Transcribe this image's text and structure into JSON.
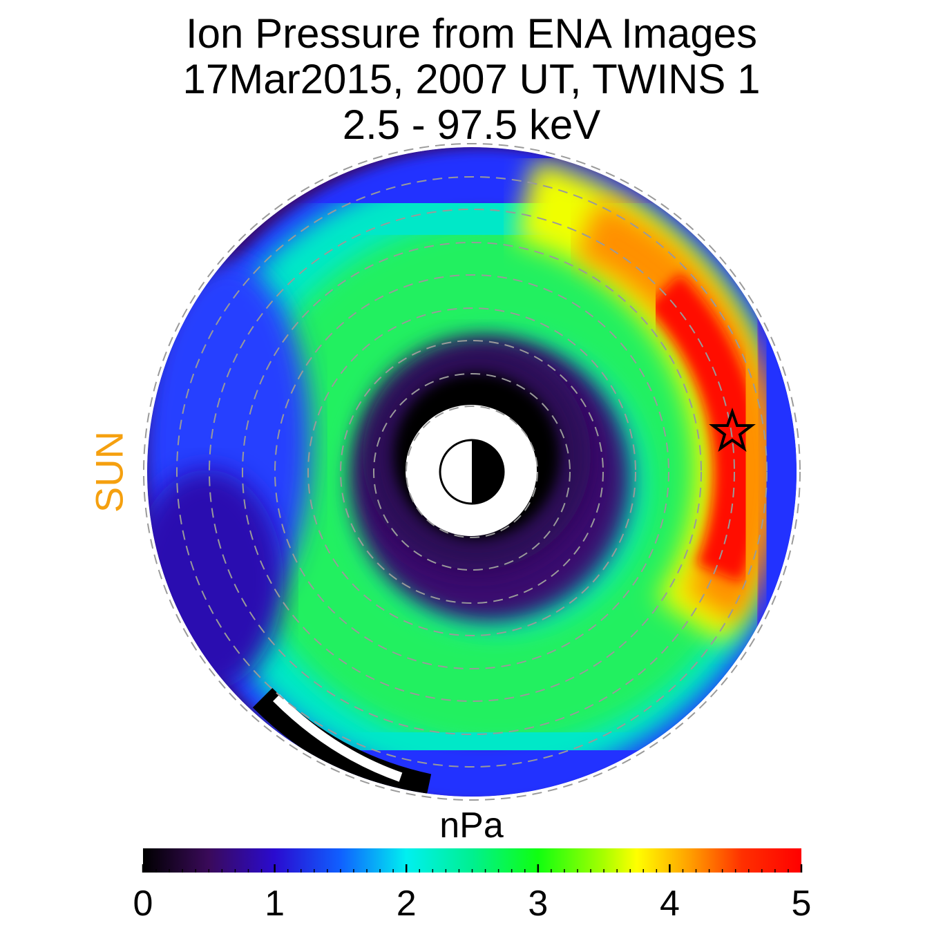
{
  "chart_data": {
    "type": "heatmap",
    "projection": "polar equatorial plane",
    "title_lines": [
      "Ion Pressure from  ENA Images",
      "17Mar2015, 2007 UT,  TWINS 1",
      "2.5 - 97.5 keV"
    ],
    "sun_label": "SUN",
    "colorbar": {
      "label": "nPa",
      "range": [
        0,
        5
      ],
      "ticks": [
        "0",
        "1",
        "2",
        "3",
        "4",
        "5"
      ],
      "colormap": "rainbow (black-purple-blue-cyan-green-yellow-orange-red)"
    },
    "features": [
      {
        "name": "pressure peak",
        "approx_value": 5,
        "location": "dusk/night side outer ring"
      },
      {
        "name": "inner low-pressure region",
        "approx_value": 0.2,
        "location": "around Earth"
      },
      {
        "name": "star marker",
        "meaning": "location of maximum pressure"
      }
    ],
    "colors": {
      "sun_label": "#f5a00f",
      "rings": "#9a9a9a",
      "star": "#000000"
    }
  }
}
